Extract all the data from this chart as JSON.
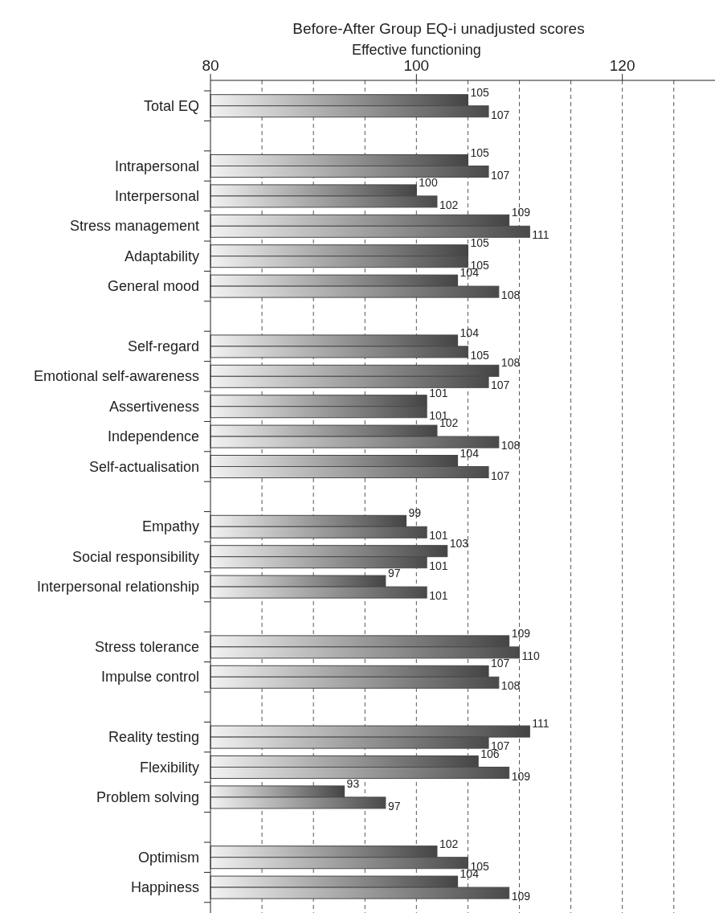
{
  "chart_data": {
    "type": "bar",
    "orientation": "horizontal",
    "title": "Before-After Group EQ-i unadjusted scores",
    "xlabel": "Effective functioning",
    "categories": [
      "Total EQ",
      null,
      "Intrapersonal",
      "Interpersonal",
      "Stress management",
      "Adaptability",
      "General mood",
      null,
      "Self-regard",
      "Emotional self-awareness",
      "Assertiveness",
      "Independence",
      "Self-actualisation",
      null,
      "Empathy",
      "Social responsibility",
      "Interpersonal relationship",
      null,
      "Stress tolerance",
      "Impulse control",
      null,
      "Reality testing",
      "Flexibility",
      "Problem solving",
      null,
      "Optimism",
      "Happiness"
    ],
    "series": [
      {
        "color": "#444444",
        "values": [
          105,
          null,
          105,
          100,
          109,
          105,
          104,
          null,
          104,
          108,
          101,
          102,
          104,
          null,
          99,
          103,
          97,
          null,
          109,
          107,
          null,
          111,
          106,
          93,
          null,
          102,
          104
        ]
      },
      {
        "color": "#4a4a4a",
        "values": [
          107,
          null,
          107,
          102,
          111,
          105,
          108,
          null,
          105,
          107,
          101,
          108,
          107,
          null,
          101,
          101,
          101,
          null,
          110,
          108,
          null,
          107,
          109,
          97,
          null,
          105,
          109
        ]
      }
    ],
    "xlim": [
      80,
      129
    ],
    "xticks": [
      80,
      {
        "value": 85,
        "label": null
      },
      {
        "value": 90,
        "label": null
      },
      {
        "value": 95,
        "label": null
      },
      100,
      {
        "value": 105,
        "label": null
      },
      {
        "value": 110,
        "label": null
      },
      {
        "value": 115,
        "label": null
      },
      120,
      {
        "value": 125,
        "label": null
      }
    ],
    "grid": "x",
    "data_labels": true
  }
}
